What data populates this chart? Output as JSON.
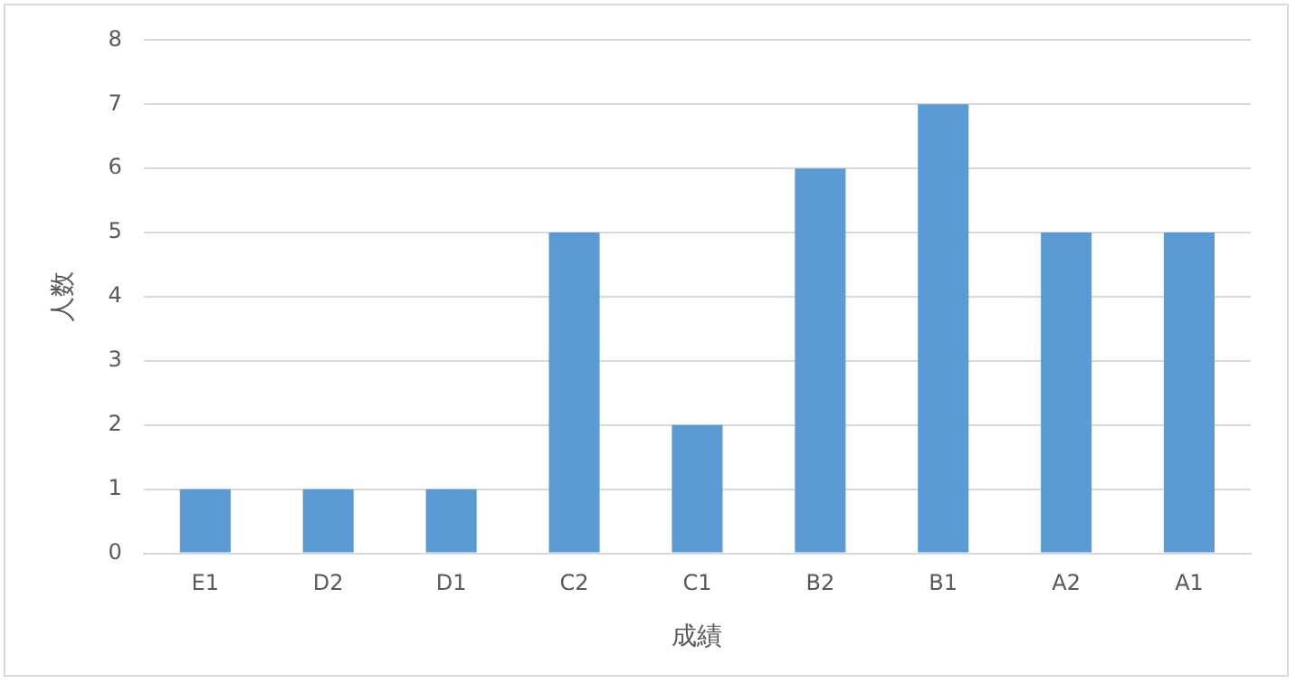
{
  "chart_data": {
    "type": "bar",
    "xlabel": "成績",
    "ylabel": "人数",
    "categories": [
      "E1",
      "D2",
      "D1",
      "C2",
      "C1",
      "B2",
      "B1",
      "A2",
      "A1"
    ],
    "values": [
      1,
      1,
      1,
      5,
      2,
      6,
      7,
      5,
      5
    ],
    "color": "#5b9bd5",
    "ylim": [
      0,
      8
    ],
    "yticks": [
      0,
      1,
      2,
      3,
      4,
      5,
      6,
      7,
      8
    ],
    "grid": "y",
    "legend": false
  }
}
